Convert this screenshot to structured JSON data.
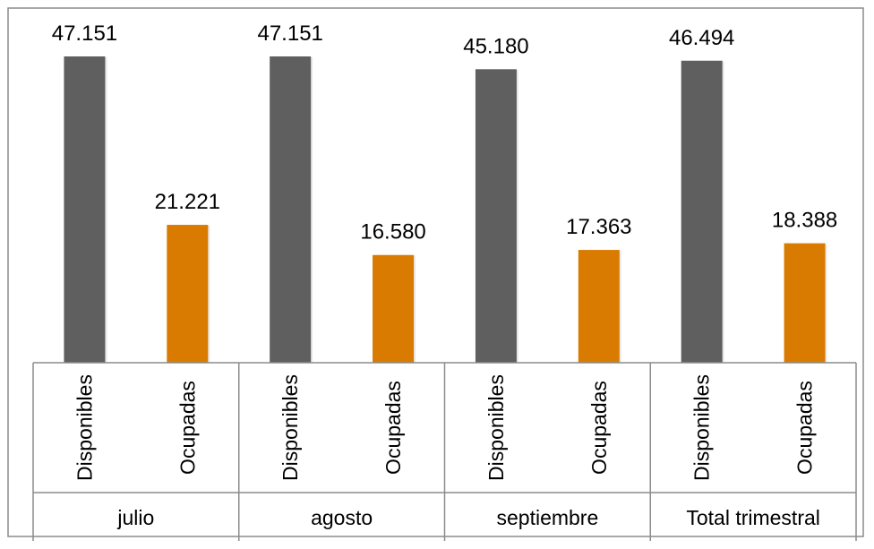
{
  "chart_data": {
    "type": "bar",
    "title": "",
    "xlabel": "",
    "ylabel": "",
    "groups": [
      "julio",
      "agosto",
      "septiembre",
      "Total trimestral"
    ],
    "subcategories": [
      "Disponibles",
      "Ocupadas"
    ],
    "series": [
      {
        "name": "Disponibles",
        "color": "#5f5f5f",
        "values": [
          47151,
          47151,
          45180,
          46494
        ],
        "labels": [
          "47.151",
          "47.151",
          "45.180",
          "46.494"
        ]
      },
      {
        "name": "Ocupadas",
        "color": "#d97b00",
        "values": [
          21221,
          16580,
          17363,
          18388
        ],
        "labels": [
          "21.221",
          "16.580",
          "17.363",
          "18.388"
        ]
      }
    ],
    "ylim": [
      0,
      47151
    ],
    "grid": false,
    "legend": "none"
  }
}
